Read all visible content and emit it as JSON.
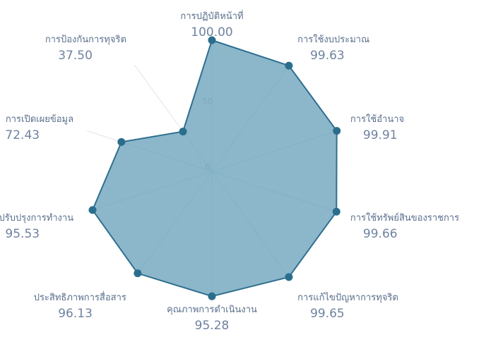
{
  "chart_data": {
    "type": "radar",
    "axes": [
      {
        "label": "การปฏิบัติหน้าที่",
        "value": 100.0,
        "display": "100.00"
      },
      {
        "label": "การใช้งบประมาณ",
        "value": 99.63,
        "display": "99.63"
      },
      {
        "label": "การใช้อำนาจ",
        "value": 99.91,
        "display": "99.91"
      },
      {
        "label": "การใช้ทรัพย์สินของราชการ",
        "value": 99.66,
        "display": "99.66"
      },
      {
        "label": "การแก้ไขปัญหาการทุจริต",
        "value": 99.65,
        "display": "99.65"
      },
      {
        "label": "คุณภาพการดำเนินงาน",
        "value": 95.28,
        "display": "95.28"
      },
      {
        "label": "ประสิทธิภาพการสื่อสาร",
        "value": 96.13,
        "display": "96.13"
      },
      {
        "label": "การปรับปรุงการทำงาน",
        "value": 95.53,
        "display": "95.53"
      },
      {
        "label": "การเปิดเผยข้อมูล",
        "value": 72.43,
        "display": "72.43"
      },
      {
        "label": "การป้องกันการทุจริต",
        "value": 37.5,
        "display": "37.50"
      }
    ],
    "radial_ticks": [
      "0",
      "50",
      "100"
    ],
    "rmin": 0,
    "rmax": 100,
    "series_color": "#5f9bb6",
    "marker_color": "#2a6e8c"
  }
}
